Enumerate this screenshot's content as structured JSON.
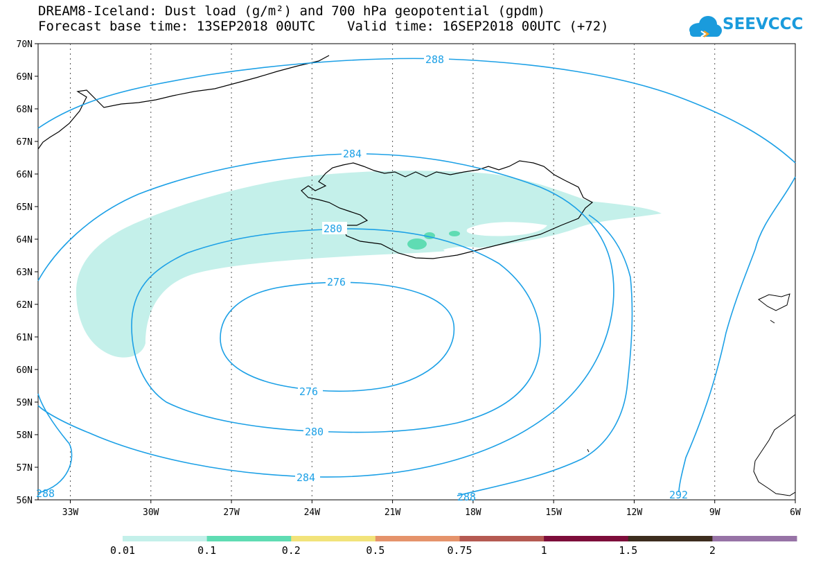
{
  "title": {
    "line1": "DREAM8-Iceland: Dust load (g/m²) and 700 hPa geopotential (gpdm)",
    "line2": "Forecast base time: 13SEP2018 00UTC    Valid time: 16SEP2018 00UTC (+72)"
  },
  "logo": {
    "text": "SEEVCCC",
    "icon": "cloud-icon",
    "color": "#1a9bdc"
  },
  "axes": {
    "lat_labels": [
      "70N",
      "69N",
      "68N",
      "67N",
      "66N",
      "65N",
      "64N",
      "63N",
      "62N",
      "61N",
      "60N",
      "59N",
      "58N",
      "57N",
      "56N"
    ],
    "lon_labels": [
      "33W",
      "30W",
      "27W",
      "24W",
      "21W",
      "18W",
      "15W",
      "12W",
      "9W",
      "6W"
    ],
    "lat_range": [
      56,
      70
    ],
    "lon_range": [
      -34.2,
      -6
    ]
  },
  "contours": {
    "color": "#1ca0e6",
    "labels": [
      {
        "text": "288",
        "key": "top"
      },
      {
        "text": "284",
        "key": "upper"
      },
      {
        "text": "280",
        "key": "inner-top"
      },
      {
        "text": "276",
        "key": "core-top"
      },
      {
        "text": "276",
        "key": "core-bottom"
      },
      {
        "text": "280",
        "key": "inner-bottom"
      },
      {
        "text": "284",
        "key": "lower"
      },
      {
        "text": "288",
        "key": "bottom-left"
      },
      {
        "text": "288",
        "key": "bottom-mid"
      },
      {
        "text": "292",
        "key": "bottom-right"
      }
    ]
  },
  "dust_colors": {
    "low": "#c4f0ea",
    "mid": "#5fdcb3"
  },
  "colorbar": {
    "segments": [
      {
        "color": "#c4f0ea"
      },
      {
        "color": "#5fdcb3"
      },
      {
        "color": "#f2e37a"
      },
      {
        "color": "#e5936b"
      },
      {
        "color": "#b55a52"
      },
      {
        "color": "#7d0d3a"
      },
      {
        "color": "#3d2d1e"
      },
      {
        "color": "#9773a6"
      }
    ],
    "labels": [
      "0.01",
      "0.1",
      "0.2",
      "0.5",
      "0.75",
      "1",
      "1.5",
      "2"
    ]
  }
}
